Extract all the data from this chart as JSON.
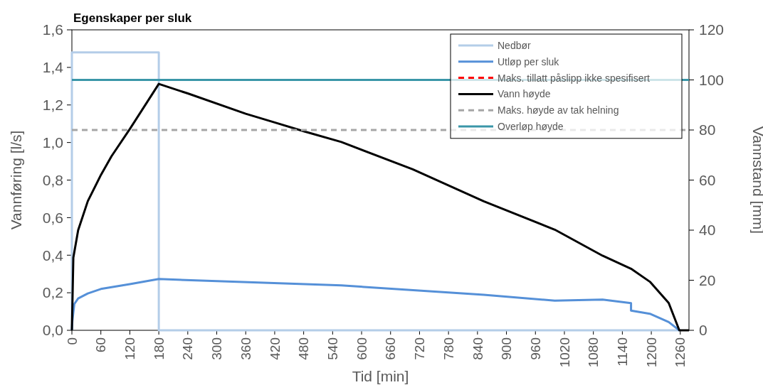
{
  "chart_data": {
    "type": "line",
    "title": "Egenskaper per sluk",
    "xlabel": "Tid [min]",
    "ylabel": "Vannføring [l/s]",
    "y2label": "Vannstand [mm]",
    "xlim": [
      0,
      1278
    ],
    "xticks": [
      0,
      60,
      120,
      180,
      240,
      300,
      360,
      420,
      480,
      540,
      600,
      660,
      720,
      780,
      840,
      900,
      960,
      1020,
      1080,
      1140,
      1200,
      1260
    ],
    "ylim": [
      0,
      1.6
    ],
    "yticks": [
      {
        "value": 0,
        "label": "0,0"
      },
      {
        "value": 0.2,
        "label": "0,2"
      },
      {
        "value": 0.4,
        "label": "0,4"
      },
      {
        "value": 0.6,
        "label": "0,6"
      },
      {
        "value": 0.8,
        "label": "0,8"
      },
      {
        "value": 1,
        "label": "1,0"
      },
      {
        "value": 1.2,
        "label": "1,2"
      },
      {
        "value": 1.4,
        "label": "1,4"
      },
      {
        "value": 1.6,
        "label": "1,6"
      }
    ],
    "y2lim": [
      0,
      120
    ],
    "y2ticks": [
      0,
      20,
      40,
      60,
      80,
      100,
      120
    ],
    "grid": false,
    "legend": "top right",
    "marker": "none",
    "series": [
      {
        "name": "Nedbør",
        "color": "#b4cde8",
        "line_style": "solid",
        "x": [
          0,
          0,
          180,
          180,
          1260
        ],
        "values": [
          0,
          1.48,
          1.48,
          0,
          0
        ]
      },
      {
        "name": "Utløp per sluk",
        "color": "#5590d8",
        "line_style": "solid",
        "x": [
          0,
          1,
          3,
          5,
          13,
          33,
          60,
          120,
          180,
          558,
          853,
          1000,
          1099,
          1158,
          1158,
          1197,
          1236,
          1258
        ],
        "values": [
          0,
          0.05,
          0.095,
          0.14,
          0.17,
          0.196,
          0.22,
          0.246,
          0.273,
          0.239,
          0.189,
          0.158,
          0.164,
          0.145,
          0.105,
          0.088,
          0.044,
          0
        ]
      },
      {
        "name": "Maks. tillatt påslipp ikke spesifisert",
        "color": "#ff0000",
        "line_style": "dashed"
      },
      {
        "name": "Vann høyde",
        "color": "#000000",
        "line_style": "solid",
        "axis": "y2",
        "x": [
          0,
          3,
          13,
          33,
          60,
          82,
          120,
          180,
          240,
          360,
          420,
          480,
          558,
          706,
          853,
          1000,
          1099,
          1158,
          1197,
          1236,
          1258,
          1278
        ],
        "values": [
          0,
          29,
          40,
          51.6,
          62,
          69.5,
          80.4,
          98.4,
          94.6,
          86.5,
          83,
          79.5,
          75.2,
          64.3,
          51.5,
          40.2,
          29.8,
          24.6,
          19.4,
          10.9,
          0,
          0
        ]
      },
      {
        "name": "Maks. høyde av tak helning",
        "color": "#a6a6a6",
        "line_style": "dashed",
        "axis": "y2",
        "x": [
          0,
          1278
        ],
        "values": [
          80,
          80
        ]
      },
      {
        "name": "Overløp høyde",
        "color": "#3a96a8",
        "line_style": "solid",
        "axis": "y2",
        "x": [
          0,
          1278
        ],
        "values": [
          100,
          100
        ]
      }
    ]
  }
}
